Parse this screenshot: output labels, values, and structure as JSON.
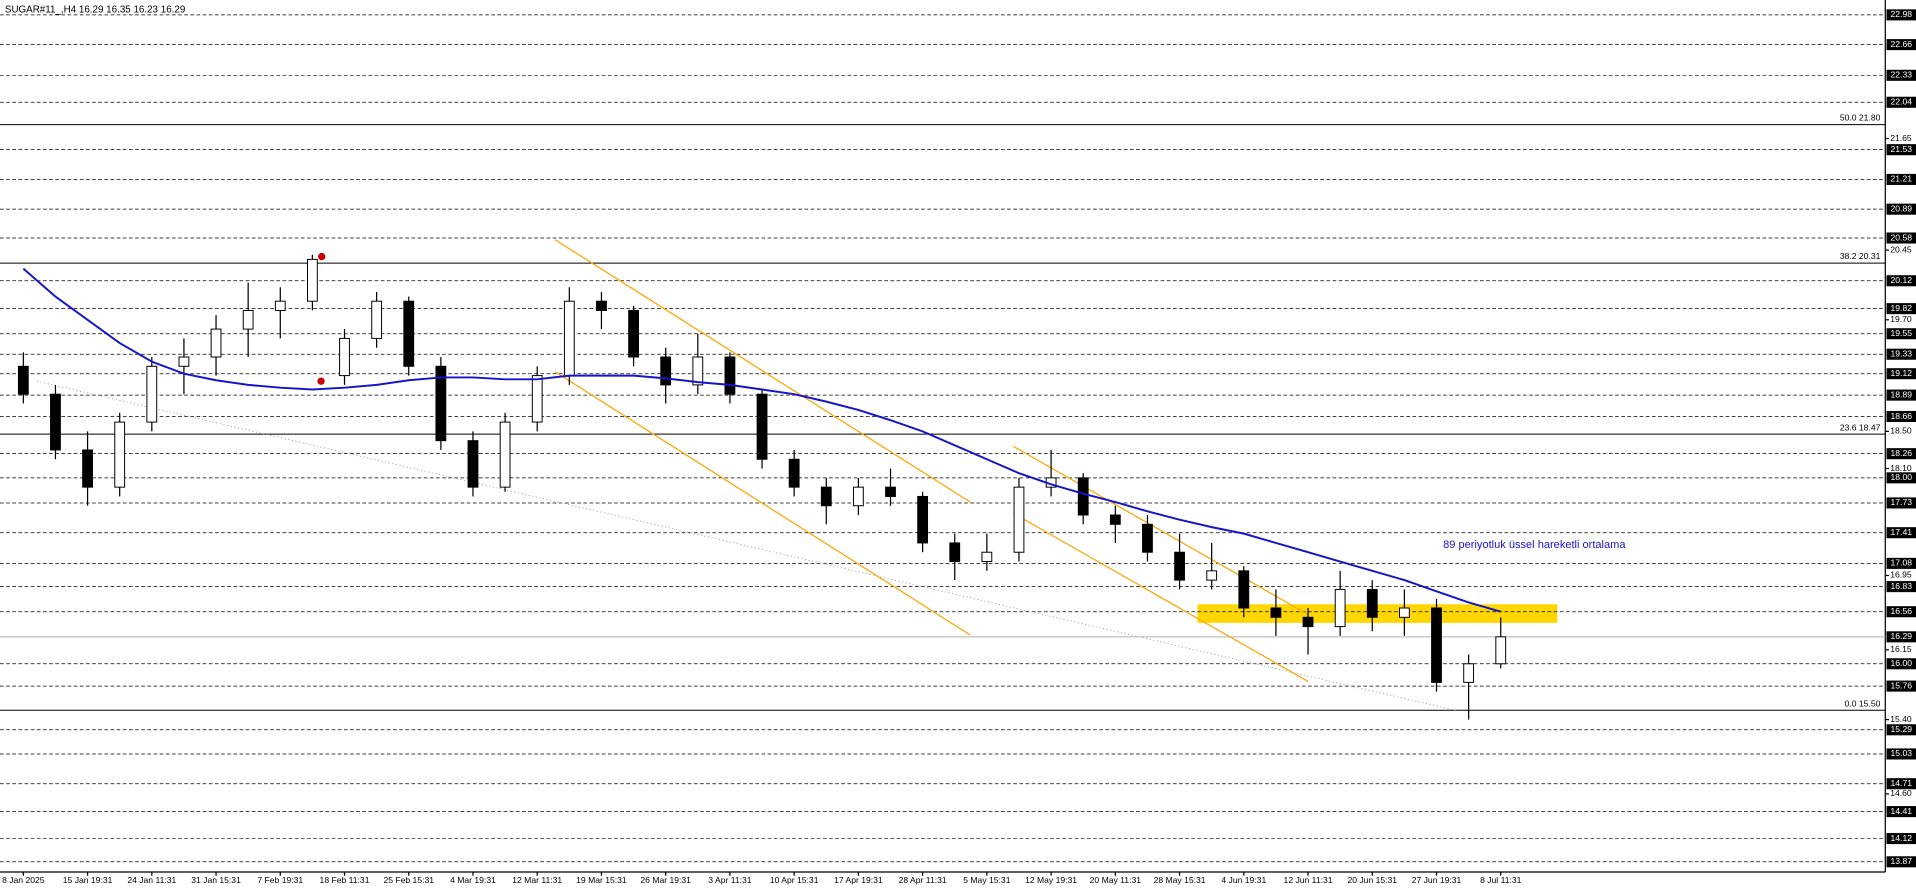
{
  "chart_data": {
    "type": "candlestick",
    "title": "SUGAR#11_,H4  16.29 16.35 16.23 16.29",
    "annotation": "89 periyotluk üssel hareketli ortalama",
    "categories": [
      "8 Jan 2025",
      null,
      "15 Jan 19:31",
      null,
      "24 Jan 11:31",
      null,
      "31 Jan 15:31",
      null,
      "7 Feb 19:31",
      null,
      "18 Feb 11:31",
      null,
      "25 Feb 15:31",
      null,
      "4 Mar 19:31",
      null,
      "12 Mar 11:31",
      null,
      "19 Mar 15:31",
      null,
      "26 Mar 19:31",
      null,
      "3 Apr 11:31",
      null,
      "10 Apr 15:31",
      null,
      "17 Apr 19:31",
      null,
      "28 Apr 11:31",
      null,
      "5 May 15:31",
      null,
      "12 May 19:31",
      null,
      "20 May 11:31",
      null,
      "28 May 15:31",
      null,
      "4 Jun 19:31",
      null,
      "12 Jun 11:31",
      null,
      "20 Jun 15:31",
      null,
      "27 Jun 19:31",
      null,
      "8 Jul 11:31"
    ],
    "ohlc": [
      [
        19.2,
        19.35,
        18.8,
        18.9
      ],
      [
        18.9,
        19.0,
        18.2,
        18.3
      ],
      [
        18.3,
        18.5,
        17.7,
        17.9
      ],
      [
        17.9,
        18.7,
        17.8,
        18.6
      ],
      [
        18.6,
        19.3,
        18.5,
        19.2
      ],
      [
        19.2,
        19.5,
        18.9,
        19.3
      ],
      [
        19.3,
        19.75,
        19.1,
        19.6
      ],
      [
        19.6,
        20.1,
        19.3,
        19.8
      ],
      [
        19.8,
        20.05,
        19.5,
        19.9
      ],
      [
        19.9,
        20.4,
        19.8,
        20.35
      ],
      [
        19.1,
        19.6,
        19.0,
        19.5
      ],
      [
        19.5,
        20.0,
        19.4,
        19.9
      ],
      [
        19.9,
        19.95,
        19.1,
        19.2
      ],
      [
        19.2,
        19.3,
        18.3,
        18.4
      ],
      [
        18.4,
        18.5,
        17.8,
        17.9
      ],
      [
        17.9,
        18.7,
        17.85,
        18.6
      ],
      [
        18.6,
        19.2,
        18.5,
        19.1
      ],
      [
        19.1,
        20.05,
        19.0,
        19.9
      ],
      [
        19.9,
        20.0,
        19.6,
        19.8
      ],
      [
        19.8,
        19.85,
        19.2,
        19.3
      ],
      [
        19.3,
        19.4,
        18.8,
        19.0
      ],
      [
        19.0,
        19.55,
        18.9,
        19.3
      ],
      [
        19.3,
        19.35,
        18.8,
        18.9
      ],
      [
        18.9,
        18.95,
        18.1,
        18.2
      ],
      [
        18.2,
        18.3,
        17.8,
        17.9
      ],
      [
        17.9,
        18.0,
        17.5,
        17.7
      ],
      [
        17.7,
        18.0,
        17.6,
        17.9
      ],
      [
        17.9,
        18.1,
        17.7,
        17.8
      ],
      [
        17.8,
        17.85,
        17.2,
        17.3
      ],
      [
        17.3,
        17.4,
        16.9,
        17.1
      ],
      [
        17.1,
        17.4,
        17.0,
        17.2
      ],
      [
        17.2,
        18.0,
        17.1,
        17.9
      ],
      [
        17.9,
        18.3,
        17.8,
        18.0
      ],
      [
        18.0,
        18.05,
        17.5,
        17.6
      ],
      [
        17.6,
        17.7,
        17.3,
        17.5
      ],
      [
        17.5,
        17.6,
        17.1,
        17.2
      ],
      [
        17.2,
        17.4,
        16.8,
        16.9
      ],
      [
        16.9,
        17.3,
        16.8,
        17.0
      ],
      [
        17.0,
        17.05,
        16.5,
        16.6
      ],
      [
        16.6,
        16.8,
        16.3,
        16.5
      ],
      [
        16.5,
        16.6,
        16.1,
        16.4
      ],
      [
        16.4,
        17.0,
        16.3,
        16.8
      ],
      [
        16.8,
        16.9,
        16.35,
        16.5
      ],
      [
        16.5,
        16.8,
        16.3,
        16.6
      ],
      [
        16.6,
        16.7,
        15.7,
        15.8
      ],
      [
        15.8,
        16.1,
        15.4,
        16.0
      ],
      [
        16.0,
        16.5,
        15.95,
        16.29
      ]
    ],
    "up_color": "#ffffff",
    "down_color": "#000000",
    "ema": {
      "color": "#1515c8",
      "values": [
        20.25,
        19.95,
        19.7,
        19.45,
        19.25,
        19.12,
        19.05,
        19.0,
        18.97,
        18.95,
        18.97,
        19.0,
        19.05,
        19.08,
        19.08,
        19.06,
        19.06,
        19.1,
        19.1,
        19.1,
        19.07,
        19.03,
        19.0,
        18.95,
        18.9,
        18.82,
        18.73,
        18.62,
        18.5,
        18.35,
        18.2,
        18.05,
        17.93,
        17.83,
        17.74,
        17.64,
        17.55,
        17.47,
        17.4,
        17.3,
        17.2,
        17.1,
        17.0,
        16.9,
        16.78,
        16.66,
        16.56
      ]
    },
    "ylim": [
      13.76,
      23.14
    ],
    "yticks": [
      21.65,
      20.45,
      {
        "value": 19.7,
        "label": "19.70"
      },
      {
        "value": 18.5,
        "label": "18.50"
      },
      {
        "value": 18.1,
        "label": "18.10"
      },
      16.95,
      16.15,
      {
        "value": 15.4,
        "label": "15.40"
      },
      {
        "value": 14.6,
        "label": "14.60"
      }
    ],
    "levels": [
      22.98,
      22.66,
      22.33,
      22.04,
      21.53,
      21.21,
      20.89,
      20.58,
      20.12,
      19.82,
      19.55,
      19.33,
      19.12,
      18.89,
      18.66,
      18.26,
      {
        "value": 18,
        "label": "18.00"
      },
      17.73,
      17.41,
      17.08,
      16.83,
      16.56,
      {
        "value": 16,
        "label": "16.00"
      },
      15.76,
      15.29,
      15.03,
      14.71,
      14.41,
      14.12,
      13.87
    ],
    "bid": 16.29,
    "fib_levels": [
      {
        "value": 21.8,
        "label": "50.0 21.80"
      },
      {
        "value": 20.31,
        "label": "38.2 20.31"
      },
      {
        "value": 18.47,
        "label": "23.6 18.47"
      },
      {
        "value": 15.5,
        "label": "0.0 15.50"
      }
    ],
    "channels": [
      {
        "x": [
          16.56,
          29.48
        ],
        "y": [
          20.56,
          17.74
        ]
      },
      {
        "x": [
          16.56,
          29.48
        ],
        "y": [
          19.14,
          16.31
        ]
      },
      {
        "x": [
          30.82,
          40.0
        ],
        "y": [
          18.34,
          16.53
        ]
      },
      {
        "x": [
          30.82,
          40.0
        ],
        "y": [
          17.62,
          15.81
        ]
      }
    ],
    "channel_color": "#ffa500",
    "trendline": {
      "x": [
        0.42,
        44.59
      ],
      "y": [
        19.04,
        15.5
      ],
      "color": "#a0a0a0"
    },
    "zone": {
      "x": [
        36.56,
        47.76
      ],
      "y": [
        16.64,
        16.44
      ],
      "color": "#ffd700"
    },
    "markers": [
      {
        "x": 9.29,
        "y": 20.38
      },
      {
        "x": 9.27,
        "y": 19.04
      }
    ],
    "marker_color": "#cc0000"
  }
}
